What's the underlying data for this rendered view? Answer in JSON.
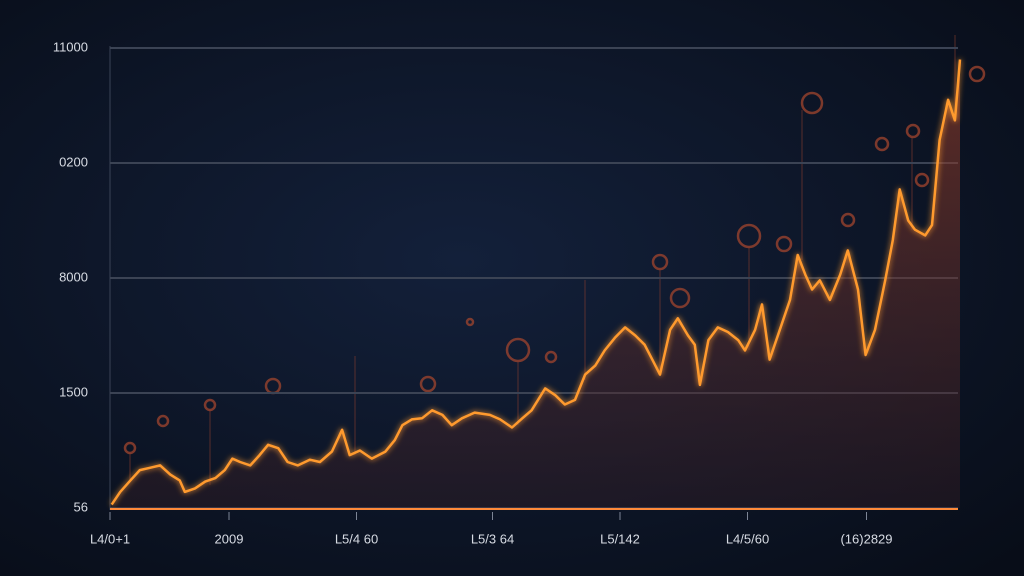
{
  "chart_data": {
    "type": "line",
    "color": "#ff9a2e",
    "xlim": [
      0,
      100
    ],
    "ylim": [
      0,
      4
    ],
    "grid": true,
    "yticks": [
      {
        "value": 0,
        "label": "56"
      },
      {
        "value": 1,
        "label": "1500"
      },
      {
        "value": 2,
        "label": "8000"
      },
      {
        "value": 3,
        "label": "0200"
      },
      {
        "value": 4,
        "label": "11000"
      }
    ],
    "xticks": [
      {
        "value": 0,
        "label": "L4/0+1"
      },
      {
        "value": 14,
        "label": "2009"
      },
      {
        "value": 29,
        "label": "L5/4 60"
      },
      {
        "value": 45,
        "label": "L5/3 64"
      },
      {
        "value": 60,
        "label": "L5/142"
      },
      {
        "value": 75,
        "label": "L4/5/60"
      },
      {
        "value": 89,
        "label": "(16)2829"
      }
    ],
    "x": [
      0.2,
      1.2,
      2.4,
      3.5,
      4.7,
      5.9,
      7.1,
      8.2,
      8.8,
      10.0,
      11.2,
      12.4,
      13.5,
      14.4,
      15.3,
      16.5,
      17.6,
      18.6,
      19.8,
      20.9,
      22.1,
      23.5,
      24.7,
      26.1,
      27.3,
      28.2,
      29.4,
      30.8,
      32.4,
      33.5,
      34.4,
      35.5,
      36.7,
      37.9,
      39.1,
      40.2,
      41.4,
      42.9,
      44.7,
      45.9,
      47.3,
      48.5,
      49.6,
      51.2,
      52.4,
      53.5,
      54.7,
      55.9,
      57.1,
      58.2,
      59.4,
      60.6,
      61.8,
      62.9,
      63.8,
      64.7,
      65.9,
      66.8,
      68.0,
      68.8,
      69.4,
      70.4,
      71.5,
      72.7,
      73.9,
      74.7,
      75.9,
      76.7,
      77.6,
      78.8,
      80.0,
      80.9,
      81.8,
      82.6,
      83.5,
      84.7,
      85.9,
      86.8,
      88.0,
      88.9,
      90.0,
      91.2,
      92.1,
      92.9,
      93.9,
      94.7,
      95.9,
      96.7,
      97.6,
      98.6,
      99.4,
      100
    ],
    "values": [
      0.03,
      0.14,
      0.24,
      0.33,
      0.35,
      0.37,
      0.29,
      0.24,
      0.14,
      0.17,
      0.23,
      0.26,
      0.33,
      0.43,
      0.4,
      0.37,
      0.46,
      0.55,
      0.52,
      0.4,
      0.37,
      0.42,
      0.4,
      0.49,
      0.68,
      0.46,
      0.5,
      0.43,
      0.49,
      0.59,
      0.72,
      0.77,
      0.78,
      0.85,
      0.81,
      0.72,
      0.78,
      0.83,
      0.81,
      0.77,
      0.7,
      0.78,
      0.85,
      1.04,
      0.98,
      0.9,
      0.94,
      1.16,
      1.24,
      1.37,
      1.48,
      1.57,
      1.5,
      1.42,
      1.29,
      1.16,
      1.55,
      1.65,
      1.5,
      1.42,
      1.07,
      1.46,
      1.57,
      1.53,
      1.46,
      1.37,
      1.55,
      1.77,
      1.29,
      1.55,
      1.81,
      2.2,
      2.03,
      1.9,
      1.98,
      1.81,
      2.03,
      2.24,
      1.9,
      1.33,
      1.55,
      1.98,
      2.33,
      2.77,
      2.5,
      2.42,
      2.37,
      2.46,
      3.2,
      3.55,
      3.37,
      3.9
    ]
  }
}
